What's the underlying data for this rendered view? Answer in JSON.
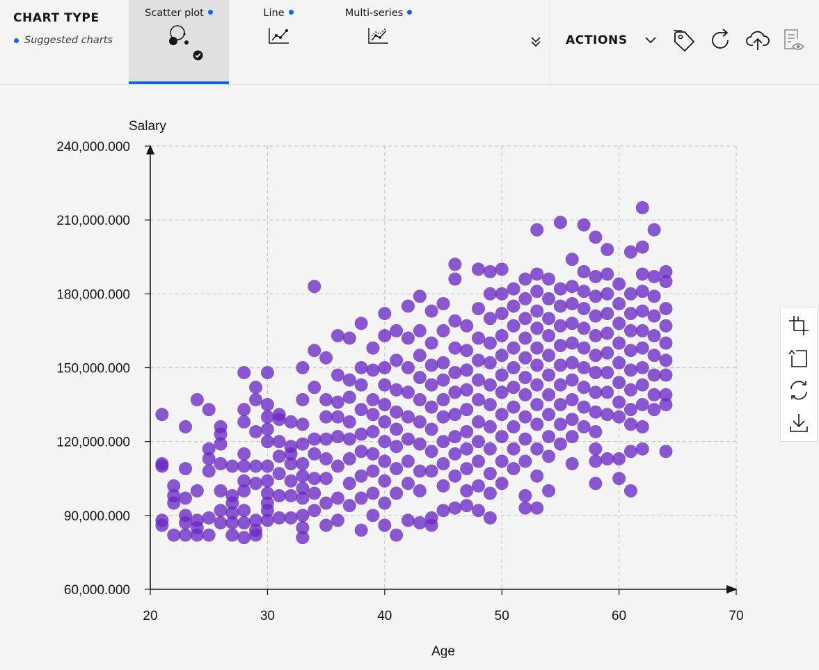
{
  "toolbar": {
    "chart_type_label": "CHART TYPE",
    "suggested_label": "Suggested charts",
    "tabs": [
      {
        "label": "Scatter plot",
        "icon": "scatter-plot-icon",
        "active": true
      },
      {
        "label": "Line",
        "icon": "line-chart-icon",
        "active": false
      },
      {
        "label": "Multi-series",
        "icon": "multi-series-icon",
        "active": false
      }
    ],
    "actions_label": "ACTIONS",
    "tool_icons": [
      "tag-icon",
      "refresh-icon",
      "cloud-upload-icon",
      "report-view-icon"
    ],
    "accent_color": "#0f62fe"
  },
  "side_tools": [
    "crop-icon",
    "reset-icon",
    "sync-icon",
    "download-icon"
  ],
  "chart_data": {
    "type": "scatter",
    "xlabel": "Age",
    "ylabel": "Salary",
    "xlim": [
      20,
      70
    ],
    "ylim": [
      60000,
      240000
    ],
    "x_ticks": [
      "20",
      "30",
      "40",
      "50",
      "60",
      "70"
    ],
    "y_ticks": [
      "60,000.000",
      "90,000.000",
      "120,000.000",
      "150,000.000",
      "180,000.000",
      "210,000.000",
      "240,000.000"
    ],
    "grid": true,
    "point_color": "#6929c4",
    "points": [
      [
        21,
        131000
      ],
      [
        21,
        111000
      ],
      [
        21,
        110000
      ],
      [
        21,
        88000
      ],
      [
        21,
        86000
      ],
      [
        22,
        102000
      ],
      [
        22,
        98000
      ],
      [
        22,
        95000
      ],
      [
        22,
        82000
      ],
      [
        23,
        126000
      ],
      [
        23,
        109000
      ],
      [
        23,
        97000
      ],
      [
        23,
        90000
      ],
      [
        23,
        87000
      ],
      [
        23,
        82000
      ],
      [
        24,
        137000
      ],
      [
        24,
        100000
      ],
      [
        24,
        88000
      ],
      [
        24,
        85000
      ],
      [
        24,
        82000
      ],
      [
        25,
        133000
      ],
      [
        25,
        117000
      ],
      [
        25,
        113000
      ],
      [
        25,
        108000
      ],
      [
        25,
        89000
      ],
      [
        25,
        82000
      ],
      [
        26,
        126000
      ],
      [
        26,
        123000
      ],
      [
        26,
        119000
      ],
      [
        26,
        111000
      ],
      [
        26,
        100000
      ],
      [
        26,
        92000
      ],
      [
        26,
        87000
      ],
      [
        27,
        110000
      ],
      [
        27,
        98000
      ],
      [
        27,
        95000
      ],
      [
        27,
        91000
      ],
      [
        27,
        87000
      ],
      [
        27,
        82000
      ],
      [
        28,
        148000
      ],
      [
        28,
        133000
      ],
      [
        28,
        128000
      ],
      [
        28,
        115000
      ],
      [
        28,
        110000
      ],
      [
        28,
        104000
      ],
      [
        28,
        100000
      ],
      [
        28,
        92000
      ],
      [
        28,
        87000
      ],
      [
        28,
        81000
      ],
      [
        29,
        142000
      ],
      [
        29,
        137000
      ],
      [
        29,
        124000
      ],
      [
        29,
        110000
      ],
      [
        29,
        103000
      ],
      [
        29,
        88000
      ],
      [
        29,
        84000
      ],
      [
        29,
        82000
      ],
      [
        30,
        148000
      ],
      [
        30,
        135000
      ],
      [
        30,
        130000
      ],
      [
        30,
        125000
      ],
      [
        30,
        120000
      ],
      [
        30,
        110000
      ],
      [
        30,
        104000
      ],
      [
        30,
        99000
      ],
      [
        30,
        95000
      ],
      [
        30,
        92000
      ],
      [
        30,
        88000
      ],
      [
        31,
        131000
      ],
      [
        31,
        129000
      ],
      [
        31,
        120000
      ],
      [
        31,
        114000
      ],
      [
        31,
        107000
      ],
      [
        31,
        98000
      ],
      [
        31,
        89000
      ],
      [
        32,
        128000
      ],
      [
        32,
        118000
      ],
      [
        32,
        115000
      ],
      [
        32,
        111000
      ],
      [
        32,
        104000
      ],
      [
        32,
        98000
      ],
      [
        32,
        89000
      ],
      [
        33,
        150000
      ],
      [
        33,
        137000
      ],
      [
        33,
        127000
      ],
      [
        33,
        119000
      ],
      [
        33,
        111000
      ],
      [
        33,
        106000
      ],
      [
        33,
        101000
      ],
      [
        33,
        97000
      ],
      [
        33,
        90000
      ],
      [
        33,
        85000
      ],
      [
        33,
        81000
      ],
      [
        34,
        183000
      ],
      [
        34,
        157000
      ],
      [
        34,
        142000
      ],
      [
        34,
        121000
      ],
      [
        34,
        115000
      ],
      [
        34,
        105000
      ],
      [
        34,
        99000
      ],
      [
        34,
        92000
      ],
      [
        35,
        154000
      ],
      [
        35,
        137000
      ],
      [
        35,
        130000
      ],
      [
        35,
        121000
      ],
      [
        35,
        113000
      ],
      [
        35,
        105000
      ],
      [
        35,
        95000
      ],
      [
        35,
        86000
      ],
      [
        36,
        163000
      ],
      [
        36,
        147000
      ],
      [
        36,
        136000
      ],
      [
        36,
        130000
      ],
      [
        36,
        122000
      ],
      [
        36,
        110000
      ],
      [
        36,
        97000
      ],
      [
        36,
        88000
      ],
      [
        37,
        162000
      ],
      [
        37,
        145000
      ],
      [
        37,
        138000
      ],
      [
        37,
        128000
      ],
      [
        37,
        121000
      ],
      [
        37,
        113000
      ],
      [
        37,
        103000
      ],
      [
        37,
        94000
      ],
      [
        38,
        168000
      ],
      [
        38,
        150000
      ],
      [
        38,
        143000
      ],
      [
        38,
        133000
      ],
      [
        38,
        123000
      ],
      [
        38,
        116000
      ],
      [
        38,
        106000
      ],
      [
        38,
        97000
      ],
      [
        38,
        84000
      ],
      [
        39,
        158000
      ],
      [
        39,
        149000
      ],
      [
        39,
        137000
      ],
      [
        39,
        131000
      ],
      [
        39,
        124000
      ],
      [
        39,
        115000
      ],
      [
        39,
        108000
      ],
      [
        39,
        99000
      ],
      [
        39,
        90000
      ],
      [
        40,
        172000
      ],
      [
        40,
        163000
      ],
      [
        40,
        150000
      ],
      [
        40,
        143000
      ],
      [
        40,
        135000
      ],
      [
        40,
        128000
      ],
      [
        40,
        120000
      ],
      [
        40,
        112000
      ],
      [
        40,
        104000
      ],
      [
        40,
        95000
      ],
      [
        40,
        86000
      ],
      [
        41,
        165000
      ],
      [
        41,
        153000
      ],
      [
        41,
        141000
      ],
      [
        41,
        132000
      ],
      [
        41,
        125000
      ],
      [
        41,
        118000
      ],
      [
        41,
        109000
      ],
      [
        41,
        99000
      ],
      [
        41,
        82000
      ],
      [
        42,
        175000
      ],
      [
        42,
        162000
      ],
      [
        42,
        150000
      ],
      [
        42,
        140000
      ],
      [
        42,
        130000
      ],
      [
        42,
        121000
      ],
      [
        42,
        112000
      ],
      [
        42,
        103000
      ],
      [
        42,
        88000
      ],
      [
        43,
        179000
      ],
      [
        43,
        165000
      ],
      [
        43,
        155000
      ],
      [
        43,
        146000
      ],
      [
        43,
        137000
      ],
      [
        43,
        128000
      ],
      [
        43,
        119000
      ],
      [
        43,
        108000
      ],
      [
        43,
        100000
      ],
      [
        43,
        87000
      ],
      [
        44,
        173000
      ],
      [
        44,
        160000
      ],
      [
        44,
        151000
      ],
      [
        44,
        143000
      ],
      [
        44,
        134000
      ],
      [
        44,
        125000
      ],
      [
        44,
        116000
      ],
      [
        44,
        108000
      ],
      [
        44,
        89000
      ],
      [
        44,
        86000
      ],
      [
        45,
        176000
      ],
      [
        45,
        165000
      ],
      [
        45,
        152000
      ],
      [
        45,
        145000
      ],
      [
        45,
        137000
      ],
      [
        45,
        130000
      ],
      [
        45,
        120000
      ],
      [
        45,
        111000
      ],
      [
        45,
        102000
      ],
      [
        45,
        92000
      ],
      [
        46,
        192000
      ],
      [
        46,
        186000
      ],
      [
        46,
        169000
      ],
      [
        46,
        158000
      ],
      [
        46,
        148000
      ],
      [
        46,
        140000
      ],
      [
        46,
        131000
      ],
      [
        46,
        122000
      ],
      [
        46,
        115000
      ],
      [
        46,
        106000
      ],
      [
        46,
        93000
      ],
      [
        47,
        167000
      ],
      [
        47,
        157000
      ],
      [
        47,
        149000
      ],
      [
        47,
        141000
      ],
      [
        47,
        133000
      ],
      [
        47,
        124000
      ],
      [
        47,
        117000
      ],
      [
        47,
        109000
      ],
      [
        47,
        100000
      ],
      [
        47,
        94000
      ],
      [
        48,
        190000
      ],
      [
        48,
        174000
      ],
      [
        48,
        162000
      ],
      [
        48,
        153000
      ],
      [
        48,
        145000
      ],
      [
        48,
        137000
      ],
      [
        48,
        128000
      ],
      [
        48,
        120000
      ],
      [
        48,
        112000
      ],
      [
        48,
        102000
      ],
      [
        48,
        92000
      ],
      [
        49,
        189000
      ],
      [
        49,
        180000
      ],
      [
        49,
        170000
      ],
      [
        49,
        160000
      ],
      [
        49,
        152000
      ],
      [
        49,
        143000
      ],
      [
        49,
        135000
      ],
      [
        49,
        126000
      ],
      [
        49,
        117000
      ],
      [
        49,
        107000
      ],
      [
        49,
        99000
      ],
      [
        49,
        89000
      ],
      [
        50,
        190000
      ],
      [
        50,
        180000
      ],
      [
        50,
        172000
      ],
      [
        50,
        163000
      ],
      [
        50,
        155000
      ],
      [
        50,
        147000
      ],
      [
        50,
        140000
      ],
      [
        50,
        131000
      ],
      [
        50,
        122000
      ],
      [
        50,
        112000
      ],
      [
        50,
        103000
      ],
      [
        51,
        182000
      ],
      [
        51,
        175000
      ],
      [
        51,
        167000
      ],
      [
        51,
        158000
      ],
      [
        51,
        150000
      ],
      [
        51,
        142000
      ],
      [
        51,
        134000
      ],
      [
        51,
        126000
      ],
      [
        51,
        117000
      ],
      [
        51,
        109000
      ],
      [
        52,
        186000
      ],
      [
        52,
        178000
      ],
      [
        52,
        170000
      ],
      [
        52,
        162000
      ],
      [
        52,
        154000
      ],
      [
        52,
        146000
      ],
      [
        52,
        139000
      ],
      [
        52,
        130000
      ],
      [
        52,
        121000
      ],
      [
        52,
        112000
      ],
      [
        52,
        98000
      ],
      [
        52,
        93000
      ],
      [
        53,
        206000
      ],
      [
        53,
        188000
      ],
      [
        53,
        181000
      ],
      [
        53,
        173000
      ],
      [
        53,
        166000
      ],
      [
        53,
        158000
      ],
      [
        53,
        151000
      ],
      [
        53,
        143000
      ],
      [
        53,
        135000
      ],
      [
        53,
        127000
      ],
      [
        53,
        117000
      ],
      [
        53,
        106000
      ],
      [
        53,
        93000
      ],
      [
        54,
        186000
      ],
      [
        54,
        178000
      ],
      [
        54,
        170000
      ],
      [
        54,
        163000
      ],
      [
        54,
        155000
      ],
      [
        54,
        147000
      ],
      [
        54,
        139000
      ],
      [
        54,
        131000
      ],
      [
        54,
        122000
      ],
      [
        54,
        114000
      ],
      [
        54,
        100000
      ],
      [
        55,
        209000
      ],
      [
        55,
        182000
      ],
      [
        55,
        175000
      ],
      [
        55,
        167000
      ],
      [
        55,
        159000
      ],
      [
        55,
        151000
      ],
      [
        55,
        143000
      ],
      [
        55,
        135000
      ],
      [
        55,
        127000
      ],
      [
        55,
        119000
      ],
      [
        56,
        194000
      ],
      [
        56,
        183000
      ],
      [
        56,
        176000
      ],
      [
        56,
        168000
      ],
      [
        56,
        160000
      ],
      [
        56,
        152000
      ],
      [
        56,
        145000
      ],
      [
        56,
        137000
      ],
      [
        56,
        129000
      ],
      [
        56,
        122000
      ],
      [
        56,
        111000
      ],
      [
        57,
        208000
      ],
      [
        57,
        189000
      ],
      [
        57,
        181000
      ],
      [
        57,
        174000
      ],
      [
        57,
        166000
      ],
      [
        57,
        158000
      ],
      [
        57,
        150000
      ],
      [
        57,
        142000
      ],
      [
        57,
        134000
      ],
      [
        57,
        126000
      ],
      [
        58,
        203000
      ],
      [
        58,
        187000
      ],
      [
        58,
        179000
      ],
      [
        58,
        171000
      ],
      [
        58,
        163000
      ],
      [
        58,
        155000
      ],
      [
        58,
        148000
      ],
      [
        58,
        140000
      ],
      [
        58,
        132000
      ],
      [
        58,
        124000
      ],
      [
        58,
        117000
      ],
      [
        58,
        112000
      ],
      [
        58,
        103000
      ],
      [
        59,
        198000
      ],
      [
        59,
        188000
      ],
      [
        59,
        180000
      ],
      [
        59,
        172000
      ],
      [
        59,
        164000
      ],
      [
        59,
        156000
      ],
      [
        59,
        148000
      ],
      [
        59,
        140000
      ],
      [
        59,
        131000
      ],
      [
        59,
        113000
      ],
      [
        60,
        184000
      ],
      [
        60,
        176000
      ],
      [
        60,
        168000
      ],
      [
        60,
        160000
      ],
      [
        60,
        152000
      ],
      [
        60,
        144000
      ],
      [
        60,
        136000
      ],
      [
        60,
        130000
      ],
      [
        60,
        113000
      ],
      [
        60,
        105000
      ],
      [
        61,
        197000
      ],
      [
        61,
        180000
      ],
      [
        61,
        172000
      ],
      [
        61,
        165000
      ],
      [
        61,
        157000
      ],
      [
        61,
        149000
      ],
      [
        61,
        141000
      ],
      [
        61,
        133000
      ],
      [
        61,
        127000
      ],
      [
        61,
        116000
      ],
      [
        61,
        100000
      ],
      [
        62,
        215000
      ],
      [
        62,
        199000
      ],
      [
        62,
        188000
      ],
      [
        62,
        181000
      ],
      [
        62,
        173000
      ],
      [
        62,
        165000
      ],
      [
        62,
        158000
      ],
      [
        62,
        150000
      ],
      [
        62,
        143000
      ],
      [
        62,
        135000
      ],
      [
        62,
        126000
      ],
      [
        62,
        117000
      ],
      [
        63,
        206000
      ],
      [
        63,
        187000
      ],
      [
        63,
        179000
      ],
      [
        63,
        171000
      ],
      [
        63,
        163000
      ],
      [
        63,
        155000
      ],
      [
        63,
        147000
      ],
      [
        63,
        139000
      ],
      [
        63,
        133000
      ],
      [
        64,
        189000
      ],
      [
        64,
        185000
      ],
      [
        64,
        174000
      ],
      [
        64,
        167000
      ],
      [
        64,
        160000
      ],
      [
        64,
        153000
      ],
      [
        64,
        147000
      ],
      [
        64,
        139000
      ],
      [
        64,
        135000
      ],
      [
        64,
        116000
      ]
    ]
  }
}
